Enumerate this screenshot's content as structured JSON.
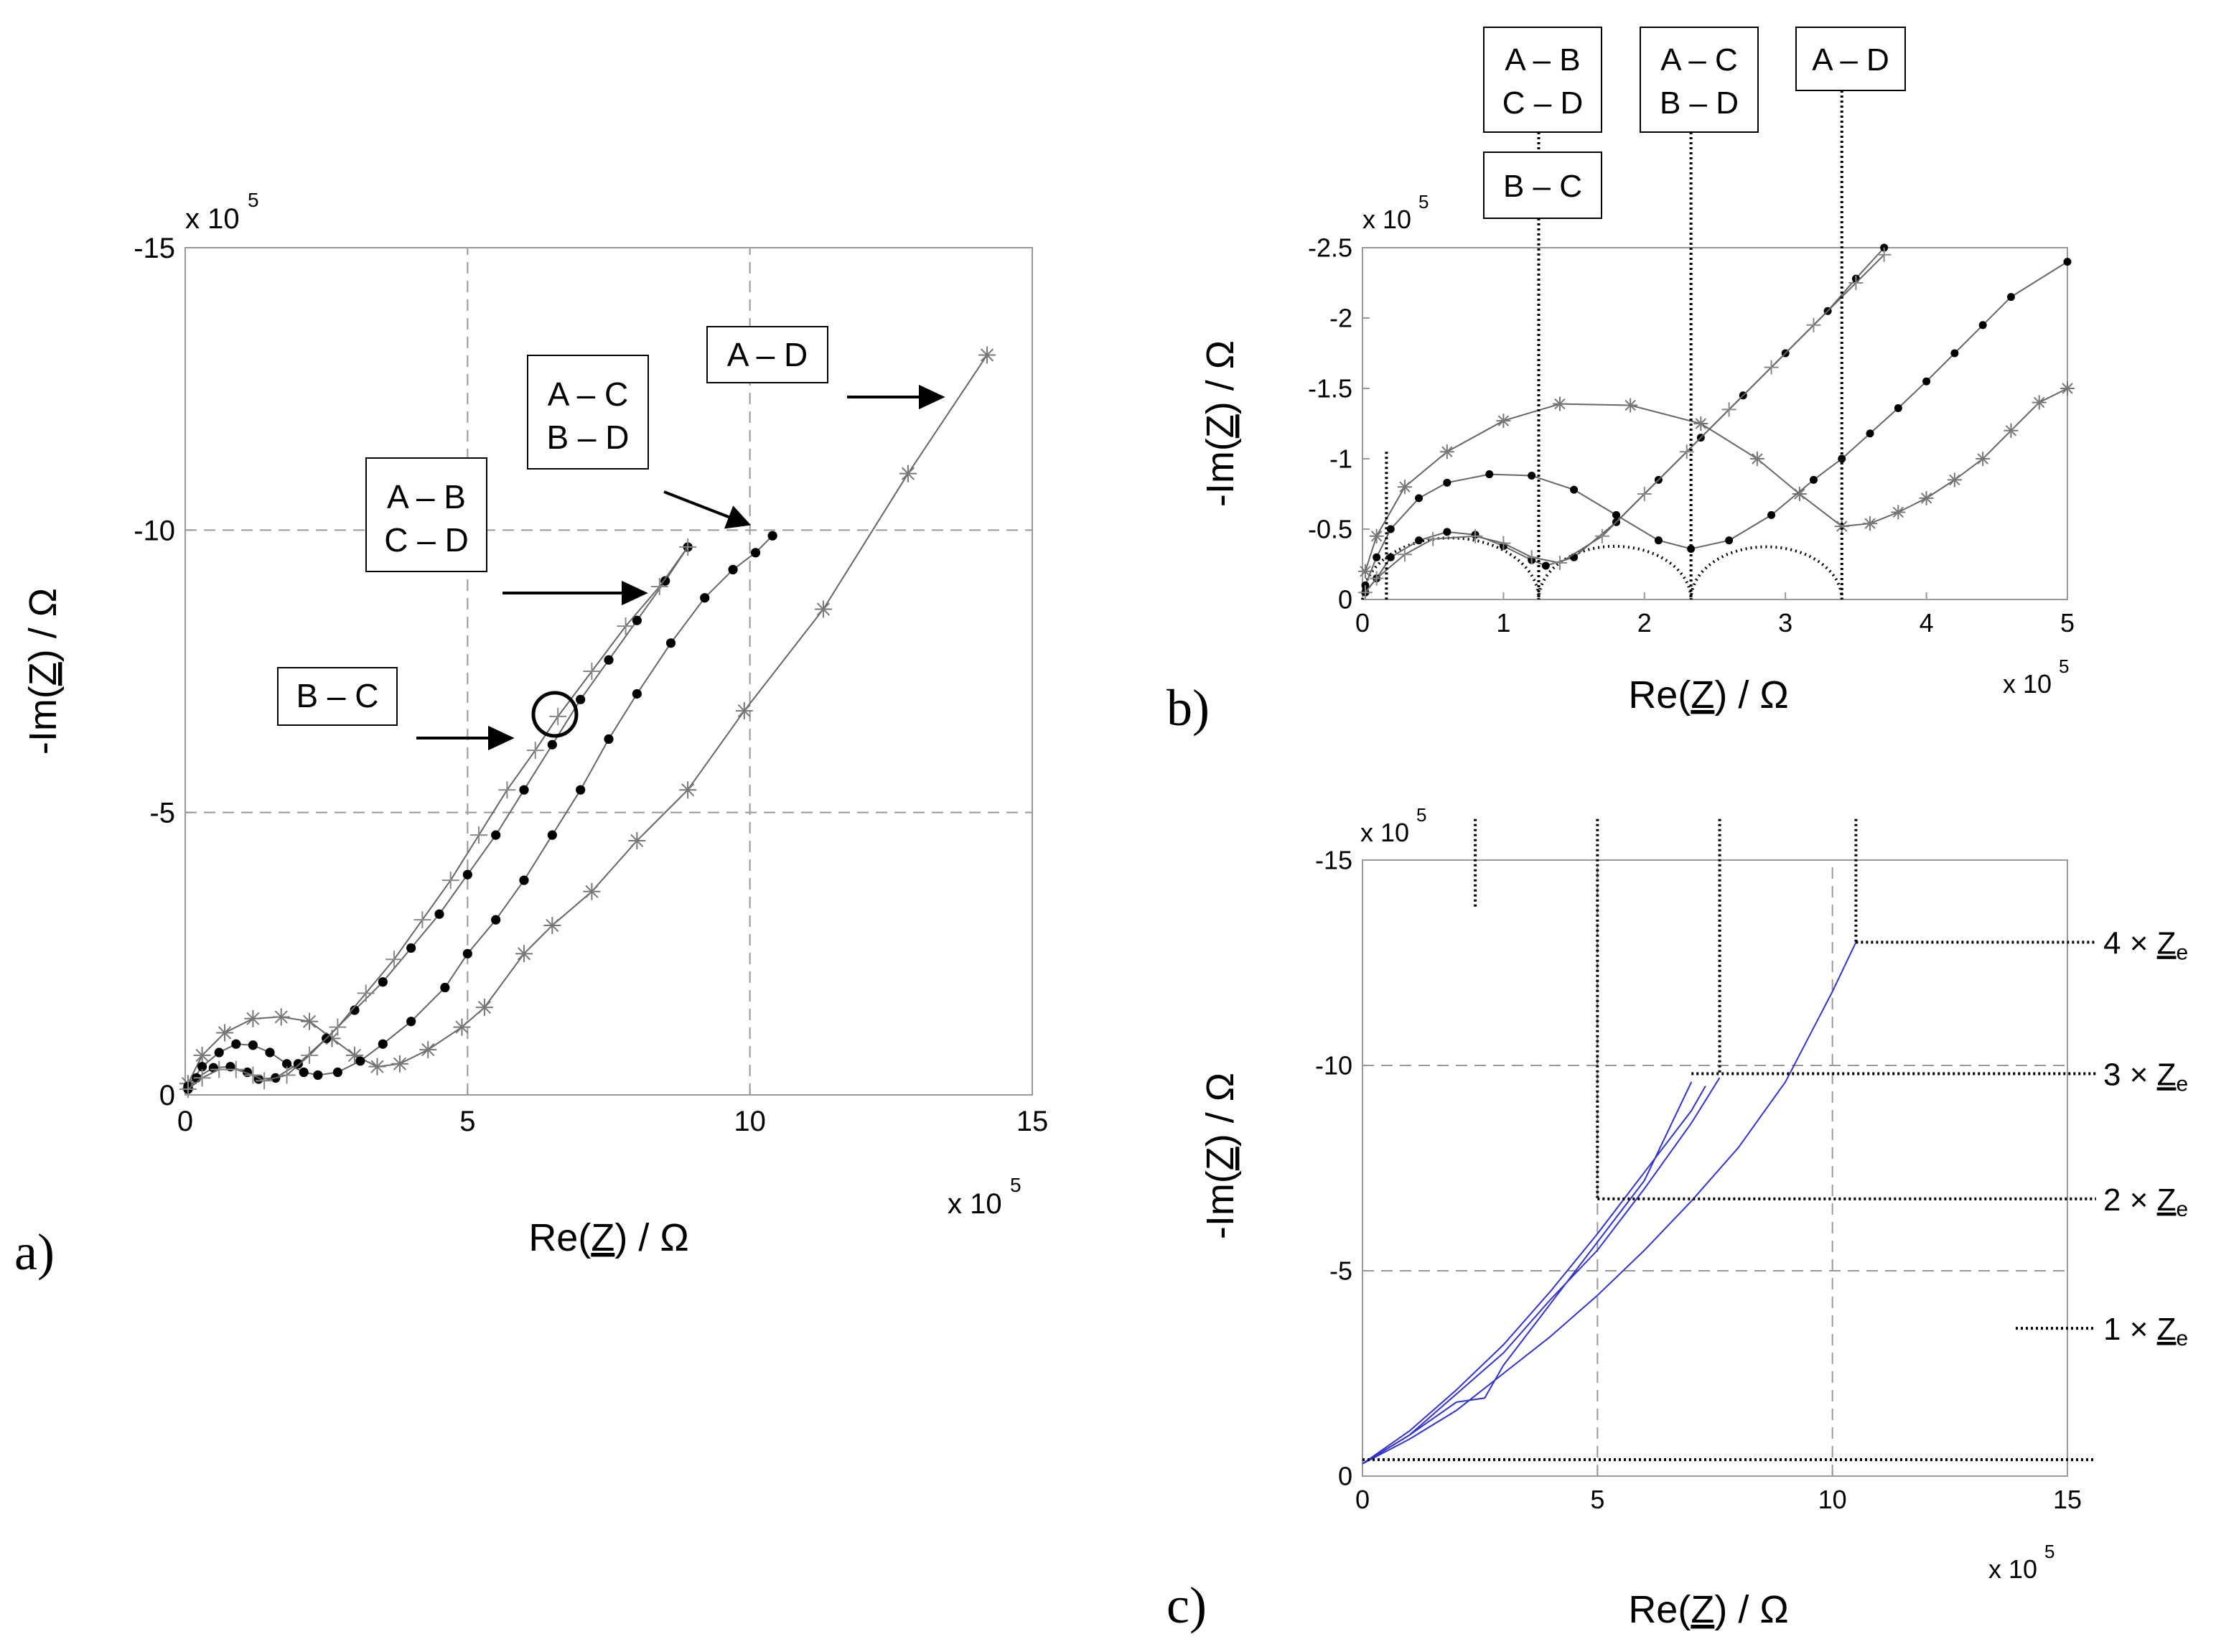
{
  "panels": {
    "a": {
      "letter": "a)"
    },
    "b": {
      "letter": "b)"
    },
    "c": {
      "letter": "c)"
    }
  },
  "chart_data": [
    {
      "id": "a",
      "type": "line",
      "xlabel": "Re(Z) / Ω",
      "ylabel": "-Im(Z) / Ω",
      "x_multiplier": "x 10^5",
      "y_multiplier": "x 10^5",
      "xlim": [
        0,
        15
      ],
      "ylim": [
        0,
        -15
      ],
      "xticks": [
        "0",
        "5",
        "10",
        "15"
      ],
      "yticks": [
        "0",
        "-5",
        "-10",
        "-15"
      ],
      "grid": "dashed at 5 and 10",
      "annotations": [
        "A – B\nC – D",
        "A – C\nB – D",
        "A – D",
        "B – C"
      ],
      "series": [
        {
          "label_box": "A – D",
          "marker": "asterisk",
          "color": "#777777",
          "x": [
            0.05,
            0.3,
            0.7,
            1.2,
            1.7,
            2.2,
            2.6,
            3.0,
            3.4,
            3.8,
            4.3,
            4.9,
            5.3,
            6.0,
            6.5,
            7.2,
            8.0,
            8.9,
            9.9,
            11.3,
            12.8,
            14.2
          ],
          "y": [
            -0.2,
            -0.7,
            -1.1,
            -1.35,
            -1.38,
            -1.3,
            -1.0,
            -0.7,
            -0.5,
            -0.55,
            -0.8,
            -1.2,
            -1.55,
            -2.5,
            -3.0,
            -3.6,
            -4.5,
            -5.4,
            -6.8,
            -8.6,
            -11.0,
            -13.1
          ]
        },
        {
          "label_box": "A – C / B – D",
          "marker": "dot",
          "color": "#000000",
          "x": [
            0.05,
            0.3,
            0.6,
            0.9,
            1.2,
            1.5,
            1.8,
            2.1,
            2.35,
            2.7,
            3.1,
            3.5,
            4.0,
            4.6,
            5.0,
            5.5,
            6.0,
            6.5,
            7.0,
            7.5,
            8.0,
            8.6,
            9.2,
            9.7,
            10.1,
            10.4
          ],
          "y": [
            -0.15,
            -0.5,
            -0.75,
            -0.9,
            -0.88,
            -0.75,
            -0.55,
            -0.4,
            -0.35,
            -0.4,
            -0.6,
            -0.9,
            -1.3,
            -1.9,
            -2.5,
            -3.1,
            -3.8,
            -4.6,
            -5.4,
            -6.3,
            -7.1,
            -8.0,
            -8.8,
            -9.3,
            -9.6,
            -9.9
          ]
        },
        {
          "label_box": "A – B / C – D",
          "marker": "dot",
          "color": "#000000",
          "x": [
            0.05,
            0.2,
            0.5,
            0.8,
            1.1,
            1.3,
            1.6,
            2.0,
            2.5,
            3.0,
            3.5,
            4.0,
            4.5,
            5.0,
            5.5,
            6.0,
            6.5,
            7.0,
            7.5,
            8.0,
            8.5,
            8.9
          ],
          "y": [
            -0.1,
            -0.3,
            -0.48,
            -0.5,
            -0.4,
            -0.28,
            -0.3,
            -0.55,
            -1.0,
            -1.5,
            -2.0,
            -2.6,
            -3.2,
            -3.9,
            -4.6,
            -5.4,
            -6.2,
            -7.0,
            -7.7,
            -8.4,
            -9.1,
            -9.7
          ]
        },
        {
          "label_box": "B – C",
          "marker": "plus",
          "color": "#888888",
          "x": [
            0.05,
            0.3,
            0.6,
            0.9,
            1.2,
            1.4,
            1.8,
            2.2,
            2.7,
            3.2,
            3.7,
            4.2,
            4.7,
            5.2,
            5.7,
            6.2,
            6.6,
            7.2,
            7.8,
            8.4,
            8.9
          ],
          "y": [
            -0.1,
            -0.3,
            -0.45,
            -0.45,
            -0.35,
            -0.25,
            -0.35,
            -0.7,
            -1.2,
            -1.8,
            -2.4,
            -3.1,
            -3.8,
            -4.6,
            -5.4,
            -6.1,
            -6.7,
            -7.5,
            -8.3,
            -9.0,
            -9.7
          ]
        }
      ]
    },
    {
      "id": "b",
      "type": "line",
      "xlabel": "Re(Z) / Ω",
      "ylabel": "-Im(Z) / Ω",
      "x_multiplier": "x 10^5",
      "y_multiplier": "x 10^5",
      "xlim": [
        0,
        5
      ],
      "ylim": [
        0,
        -2.5
      ],
      "xticks": [
        "0",
        "1",
        "2",
        "3",
        "4",
        "5"
      ],
      "yticks": [
        "0",
        "-0.5",
        "-1",
        "-1.5",
        "-2",
        "-2.5"
      ],
      "annotations": [
        "A – B\nC – D",
        "B – C",
        "A – C\nB – D",
        "A – D"
      ],
      "vertical_markers_x": [
        0.17,
        1.25,
        2.33,
        3.4
      ],
      "series": [
        {
          "marker": "asterisk",
          "color": "#777777",
          "x": [
            0.02,
            0.1,
            0.3,
            0.6,
            1.0,
            1.4,
            1.9,
            2.4,
            2.8,
            3.1,
            3.4,
            3.6,
            3.8,
            4.0,
            4.2,
            4.4,
            4.6,
            4.8,
            5.0
          ],
          "y": [
            -0.2,
            -0.45,
            -0.8,
            -1.05,
            -1.27,
            -1.39,
            -1.38,
            -1.25,
            -1.0,
            -0.75,
            -0.52,
            -0.54,
            -0.62,
            -0.72,
            -0.85,
            -1.0,
            -1.2,
            -1.4,
            -1.5
          ]
        },
        {
          "marker": "dot",
          "color": "#000000",
          "x": [
            0.02,
            0.1,
            0.2,
            0.4,
            0.6,
            0.9,
            1.2,
            1.5,
            1.8,
            2.1,
            2.33,
            2.6,
            2.9,
            3.2,
            3.4,
            3.6,
            3.8,
            4.0,
            4.2,
            4.4,
            4.6,
            5.0
          ],
          "y": [
            -0.1,
            -0.3,
            -0.5,
            -0.72,
            -0.83,
            -0.89,
            -0.88,
            -0.78,
            -0.6,
            -0.42,
            -0.36,
            -0.42,
            -0.6,
            -0.85,
            -1.0,
            -1.18,
            -1.36,
            -1.55,
            -1.75,
            -1.95,
            -2.15,
            -2.4
          ]
        },
        {
          "marker": "dot",
          "color": "#000000",
          "x": [
            0.02,
            0.1,
            0.2,
            0.4,
            0.6,
            0.8,
            1.0,
            1.2,
            1.3,
            1.5,
            1.8,
            2.1,
            2.4,
            2.7,
            3.0,
            3.3,
            3.5,
            3.7
          ],
          "y": [
            -0.05,
            -0.15,
            -0.3,
            -0.42,
            -0.48,
            -0.46,
            -0.38,
            -0.28,
            -0.24,
            -0.3,
            -0.55,
            -0.85,
            -1.15,
            -1.45,
            -1.75,
            -2.05,
            -2.28,
            -2.5
          ]
        },
        {
          "marker": "plus",
          "color": "#888888",
          "x": [
            0.02,
            0.1,
            0.3,
            0.5,
            0.8,
            1.0,
            1.2,
            1.4,
            1.7,
            2.0,
            2.3,
            2.6,
            2.9,
            3.2,
            3.5,
            3.7
          ],
          "y": [
            -0.05,
            -0.15,
            -0.32,
            -0.43,
            -0.45,
            -0.4,
            -0.3,
            -0.26,
            -0.45,
            -0.75,
            -1.05,
            -1.35,
            -1.65,
            -1.95,
            -2.25,
            -2.45
          ]
        }
      ]
    },
    {
      "id": "c",
      "type": "line",
      "xlabel": "Re(Z) / Ω",
      "ylabel": "-Im(Z) / Ω",
      "x_multiplier": "x 10^5",
      "y_multiplier": "x 10^5",
      "xlim": [
        0,
        15
      ],
      "ylim": [
        0,
        -15
      ],
      "xticks": [
        "0",
        "5",
        "10",
        "15"
      ],
      "yticks": [
        "0",
        "-5",
        "-10",
        "-15"
      ],
      "grid": "dashed at 5 and 10",
      "levels": [
        {
          "label": "1 × Ze",
          "y": -0.4
        },
        {
          "label": "2 × Ze",
          "y": -6.75
        },
        {
          "label": "3 × Ze",
          "y": -9.8
        },
        {
          "label": "4 × Ze",
          "y": -13.0
        }
      ],
      "series": [
        {
          "color": "#3333cc",
          "x": [
            0,
            1,
            2,
            3,
            4,
            5,
            6,
            7,
            8,
            9,
            10,
            10.5
          ],
          "y": [
            -0.3,
            -0.9,
            -1.6,
            -2.5,
            -3.4,
            -4.4,
            -5.5,
            -6.7,
            -8.0,
            -9.6,
            -11.8,
            -13.0
          ]
        },
        {
          "color": "#3333cc",
          "x": [
            0,
            1,
            2,
            3,
            4,
            5,
            6,
            7,
            7.6
          ],
          "y": [
            -0.3,
            -1.0,
            -2.0,
            -3.0,
            -4.3,
            -5.5,
            -7.0,
            -8.6,
            -9.7
          ]
        },
        {
          "color": "#3333cc",
          "x": [
            0,
            1,
            2,
            3,
            4,
            5,
            6,
            7,
            7.3
          ],
          "y": [
            -0.3,
            -1.1,
            -2.1,
            -3.2,
            -4.5,
            -5.9,
            -7.4,
            -8.9,
            -9.5
          ]
        },
        {
          "color": "#3333cc",
          "x": [
            0,
            1,
            2,
            2.6,
            3,
            4,
            5,
            6,
            7
          ],
          "y": [
            -0.3,
            -1.0,
            -1.8,
            -1.9,
            -2.7,
            -4.2,
            -5.7,
            -7.2,
            -9.6
          ]
        }
      ]
    }
  ]
}
